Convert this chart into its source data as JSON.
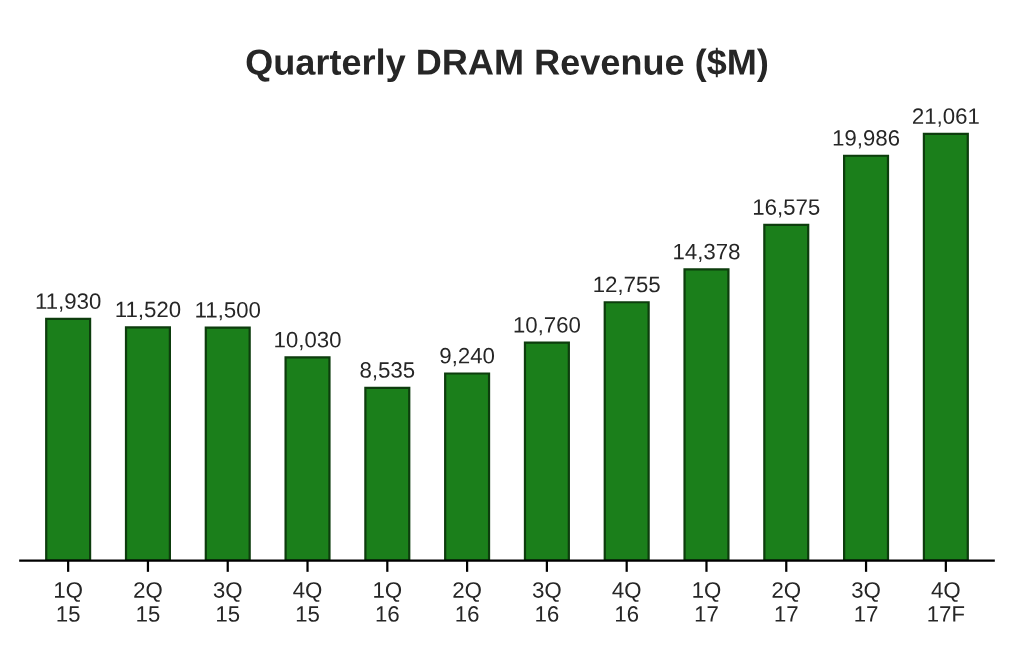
{
  "chart_data": {
    "type": "bar",
    "title": "Quarterly DRAM Revenue ($M)",
    "categories": [
      "1Q\n15",
      "2Q\n15",
      "3Q\n15",
      "4Q\n15",
      "1Q\n16",
      "2Q\n16",
      "3Q\n16",
      "4Q\n16",
      "1Q\n17",
      "2Q\n17",
      "3Q\n17",
      "4Q\n17F"
    ],
    "values": [
      11930,
      11520,
      11500,
      10030,
      8535,
      9240,
      10760,
      12755,
      14378,
      16575,
      19986,
      21061
    ],
    "value_labels": [
      "11,930",
      "11,520",
      "11,500",
      "10,030",
      "8,535",
      "9,240",
      "10,760",
      "12,755",
      "14,378",
      "16,575",
      "19,986",
      "21,061"
    ],
    "color": "#1b7f1b",
    "grid": false,
    "legend": false
  }
}
